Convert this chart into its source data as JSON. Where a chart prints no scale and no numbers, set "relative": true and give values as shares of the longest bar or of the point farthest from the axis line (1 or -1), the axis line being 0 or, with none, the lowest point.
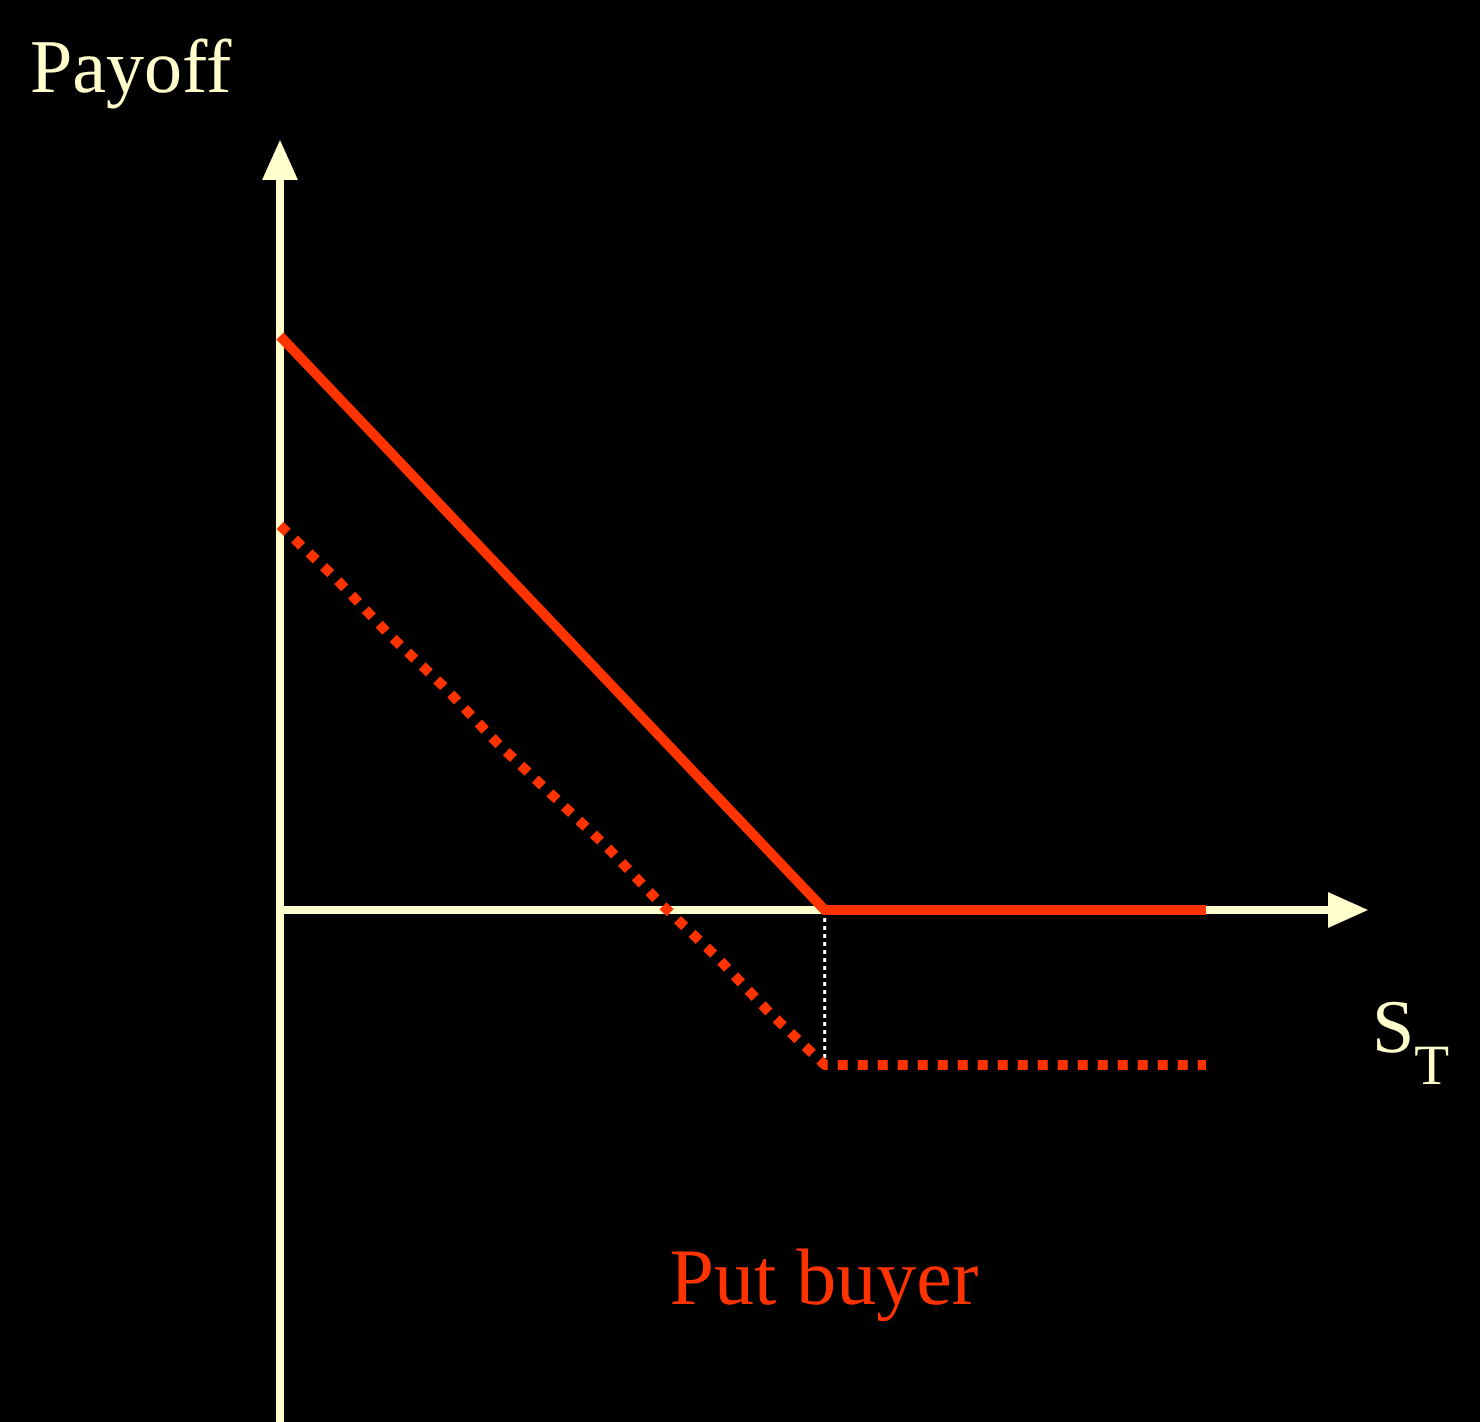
{
  "chart_data": {
    "type": "line",
    "relative": true,
    "ylabel": "Payoff",
    "xlabel": "S$_{T}$",
    "annotations": [
      "Put buyer"
    ],
    "ref_lines": [
      {
        "axis": "y",
        "value": 0,
        "color": "#ffffcc"
      }
    ],
    "categories": [
      null,
      null,
      null,
      null,
      null,
      null,
      null,
      null,
      null,
      null,
      null,
      null,
      null,
      null,
      null,
      null,
      null,
      null
    ],
    "series": [
      {
        "color": "#ff3300",
        "values": [
          1,
          0.9,
          0.8,
          0.7,
          0.6,
          0.5,
          0.4,
          0.3,
          0.2,
          0.1,
          0,
          0,
          0,
          0,
          0,
          0,
          0,
          0
        ],
        "line_style": "solid"
      },
      {
        "color": "#ff3300",
        "values": [
          0.67,
          0.58,
          0.48,
          0.39,
          0.29,
          0.2,
          0.11,
          0.01,
          -0.08,
          -0.18,
          -0.27,
          -0.27,
          -0.27,
          -0.27,
          -0.27,
          -0.27,
          -0.27,
          -0.27
        ],
        "line_style": "dotted"
      }
    ]
  }
}
